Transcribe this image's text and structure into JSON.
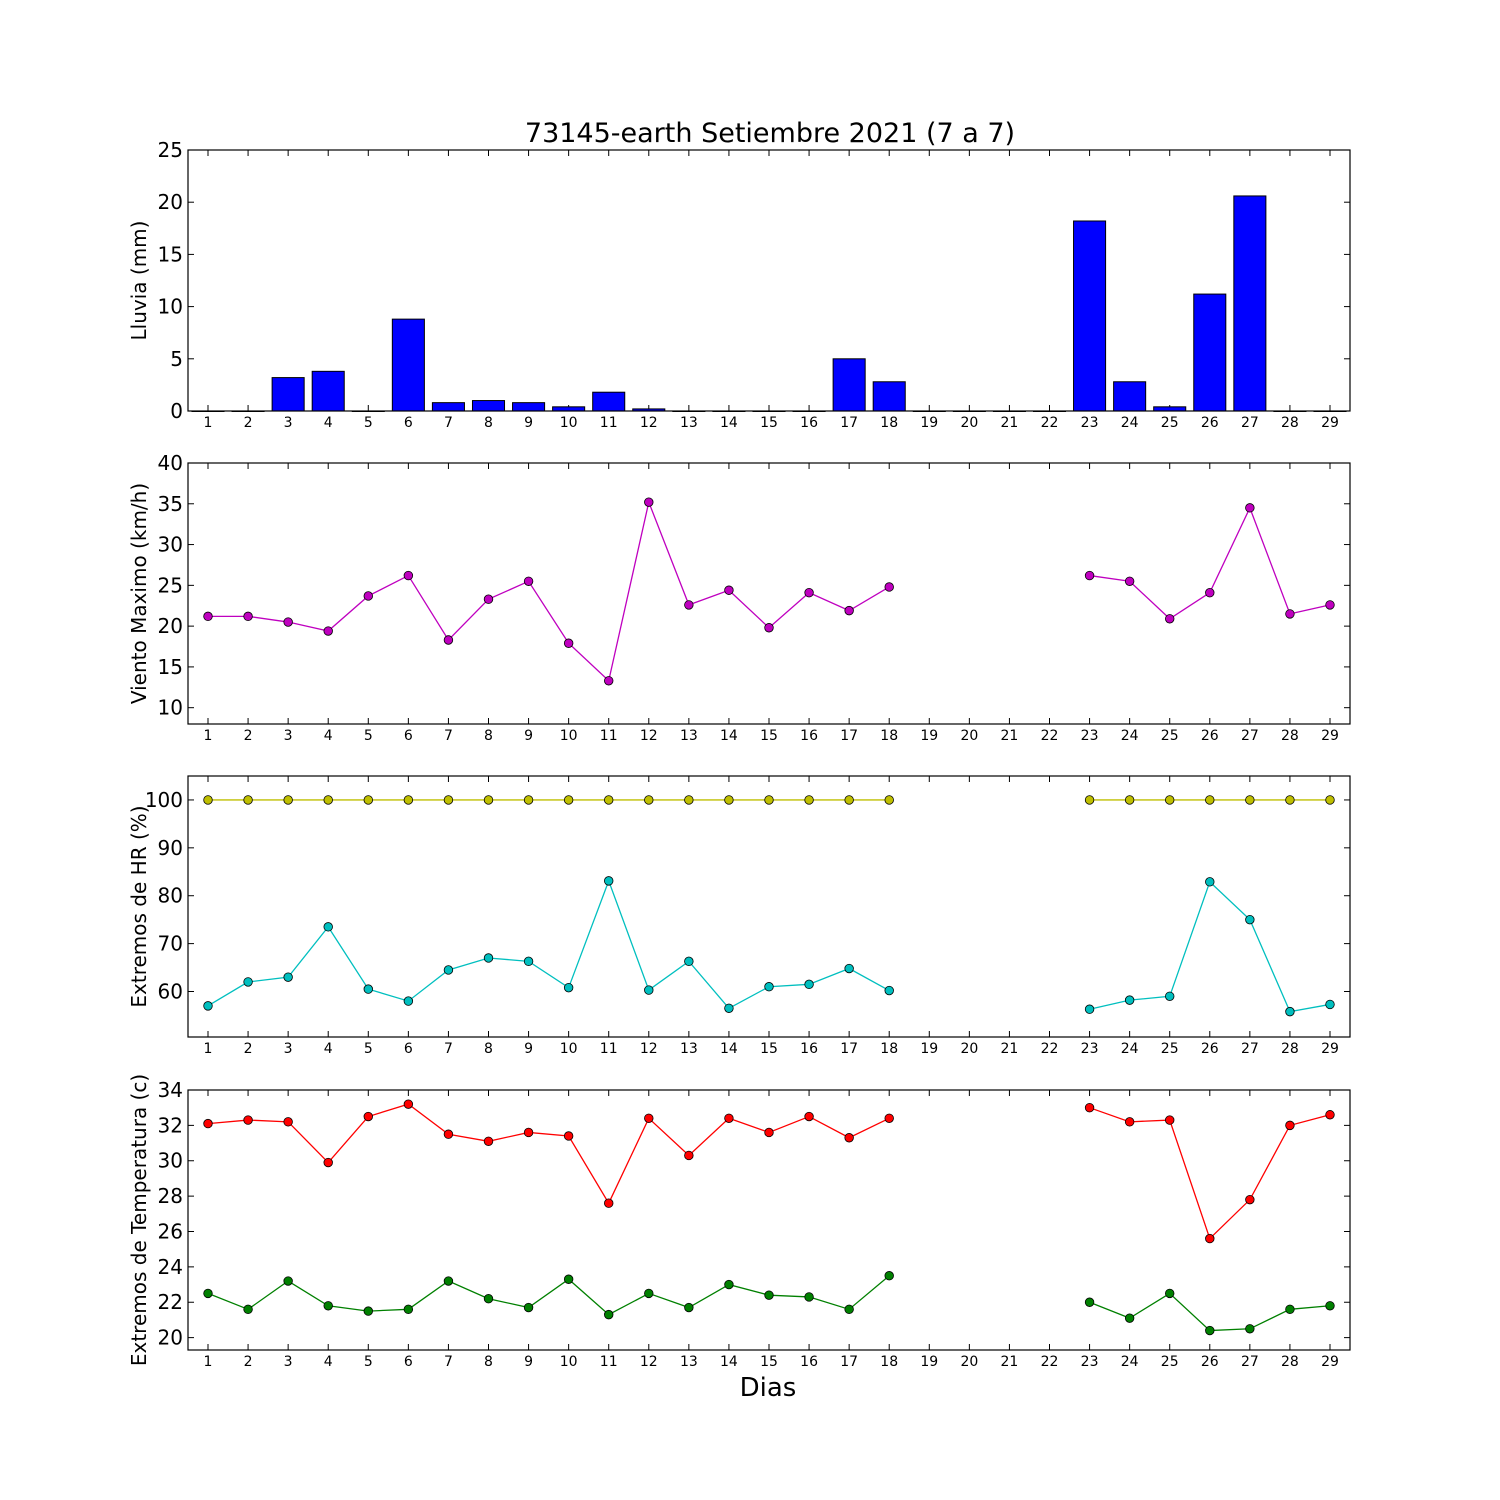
{
  "chart_data": {
    "type": "multi-panel",
    "title": "73145-earth Setiembre 2021  (7 a 7)",
    "xlabel": "Dias",
    "categories": [
      1,
      2,
      3,
      4,
      5,
      6,
      7,
      8,
      9,
      10,
      11,
      12,
      13,
      14,
      15,
      16,
      17,
      18,
      19,
      20,
      21,
      22,
      23,
      24,
      25,
      26,
      27,
      28,
      29
    ],
    "panels": [
      {
        "type": "bar",
        "ylabel": "Lluvia (mm)",
        "ylim": [
          0,
          25
        ],
        "yticks": [
          0,
          5,
          10,
          15,
          20,
          25
        ],
        "series": [
          {
            "color": "#0000ff",
            "values": [
              0,
              0,
              3.2,
              3.8,
              0,
              8.8,
              0.8,
              1.0,
              0.8,
              0.4,
              1.8,
              0.2,
              0,
              0,
              0,
              0,
              5.0,
              2.8,
              0,
              0,
              0,
              0,
              18.2,
              2.8,
              0.4,
              11.2,
              20.6,
              0,
              0
            ]
          }
        ]
      },
      {
        "type": "line",
        "ylabel": "Viento Maximo (km/h)",
        "ylim": [
          8,
          40
        ],
        "yticks": [
          10,
          15,
          20,
          25,
          30,
          35,
          40
        ],
        "series": [
          {
            "color": "#bf00bf",
            "values": [
              21.2,
              21.2,
              20.5,
              19.4,
              23.7,
              26.2,
              18.3,
              23.3,
              25.5,
              17.9,
              13.3,
              35.2,
              22.6,
              24.4,
              19.8,
              24.1,
              21.9,
              24.8,
              null,
              null,
              null,
              null,
              26.2,
              25.5,
              20.9,
              24.1,
              34.5,
              21.5,
              22.6
            ]
          }
        ]
      },
      {
        "type": "line",
        "ylabel": "Extremos de HR (%)",
        "ylim": [
          50.5,
          105
        ],
        "yticks": [
          60,
          70,
          80,
          90,
          100
        ],
        "series": [
          {
            "color": "#bfbf00",
            "values": [
              100,
              100,
              100,
              100,
              100,
              100,
              100,
              100,
              100,
              100,
              100,
              100,
              100,
              100,
              100,
              100,
              100,
              100,
              null,
              null,
              null,
              null,
              100,
              100,
              100,
              100,
              100,
              100,
              100
            ]
          },
          {
            "color": "#00bfbf",
            "values": [
              57,
              62,
              63,
              73.5,
              60.5,
              58,
              64.5,
              67,
              66.3,
              60.8,
              83.1,
              60.3,
              66.3,
              56.5,
              61,
              61.5,
              64.8,
              60.2,
              null,
              null,
              null,
              null,
              56.3,
              58.2,
              59,
              82.9,
              75,
              55.8,
              57.3
            ]
          }
        ]
      },
      {
        "type": "line",
        "ylabel": "Extremos de Temperatura (c)",
        "ylim": [
          19.3,
          34
        ],
        "yticks": [
          20,
          22,
          24,
          26,
          28,
          30,
          32,
          34
        ],
        "series": [
          {
            "color": "#ff0000",
            "values": [
              32.1,
              32.3,
              32.2,
              29.9,
              32.5,
              33.2,
              31.5,
              31.1,
              31.6,
              31.4,
              27.6,
              32.4,
              30.3,
              32.4,
              31.6,
              32.5,
              31.3,
              32.4,
              null,
              null,
              null,
              null,
              33.0,
              32.2,
              32.3,
              25.6,
              27.8,
              32.0,
              32.6
            ]
          },
          {
            "color": "#008000",
            "values": [
              22.5,
              21.6,
              23.2,
              21.8,
              21.5,
              21.6,
              23.2,
              22.2,
              21.7,
              23.3,
              21.3,
              22.5,
              21.7,
              23.0,
              22.4,
              22.3,
              21.6,
              23.5,
              null,
              null,
              null,
              null,
              22.0,
              21.1,
              22.5,
              20.4,
              20.5,
              21.6,
              21.8
            ]
          }
        ]
      }
    ]
  }
}
